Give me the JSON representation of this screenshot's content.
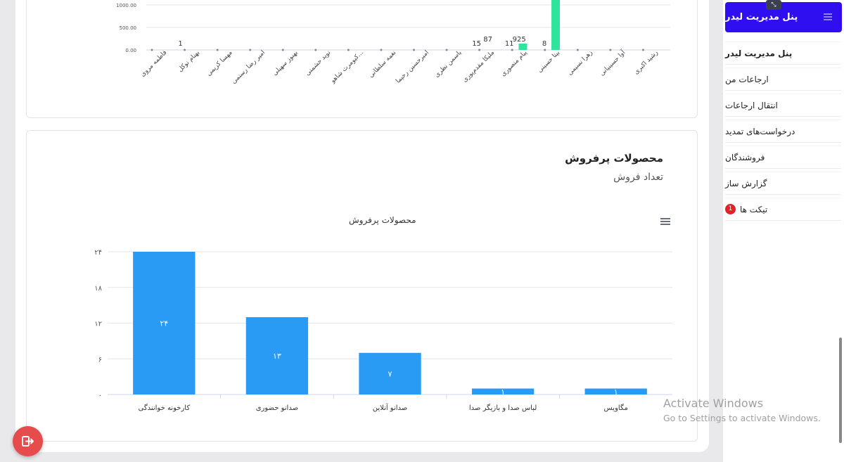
{
  "sidebar": {
    "brand": "پنل مدیریت لیدر",
    "items": [
      {
        "label": "پنل مدیریت لیدر"
      },
      {
        "label": "ارجاعات من"
      },
      {
        "label": "انتقال ارجاعات"
      },
      {
        "label": "درخواست‌های تمدید"
      },
      {
        "label": "فروشندگان"
      },
      {
        "label": "گزارش ساز"
      },
      {
        "label": "تیکت ها",
        "badge": "1"
      }
    ]
  },
  "top_chart": {
    "yticks": [
      "1000.00",
      "500.00",
      "0.00"
    ],
    "names": [
      "فاطمه مروی",
      "بهنام نوکل",
      "مهسا کریمی",
      "امیر رضا رستمی",
      "بهنوز سهیلی",
      "نوید حشمتی",
      "کیومرث شاهو...",
      "نغمه سلطانی",
      "امیرحسین رحیما",
      "یاسمن نظری",
      "ملیکا مقدم‌پوری",
      "پیام منصوری",
      "بیتا حسینی",
      "زهرا نسیمی",
      "آوا حسینیانی",
      "رشید اکبری"
    ],
    "value_labels": [
      "1",
      "15",
      "87",
      "11",
      "925",
      "8"
    ]
  },
  "bottom_card": {
    "title": "محصولات پرفروش",
    "subtitle": "تعداد فروش",
    "chart_title": "محصولات پرفروش"
  },
  "chart_data": {
    "type": "bar",
    "title": "محصولات پرفروش",
    "categories": [
      "کارخونه خوانندگی",
      "صدانو حضوری",
      "صدانو آنلاین",
      "لباس صدا و بازیگر صدا",
      "مگاویس"
    ],
    "values": [
      24,
      13,
      7,
      1,
      1
    ],
    "data_labels": [
      "۲۴",
      "۱۳",
      "۷",
      "۱",
      "۱"
    ],
    "yticks": [
      0,
      6,
      12,
      18,
      24
    ],
    "ytick_labels": [
      "۰",
      "۶",
      "۱۲",
      "۱۸",
      "۲۴"
    ],
    "ylim": [
      0,
      24
    ],
    "bar_color": "#2a9bf5"
  },
  "watermark": {
    "line1": "Activate Windows",
    "line2": "Go to Settings to activate Windows."
  },
  "icons": {
    "logout": "logout-icon",
    "menu": "hamburger-icon",
    "collapse": "collapse-icon"
  }
}
